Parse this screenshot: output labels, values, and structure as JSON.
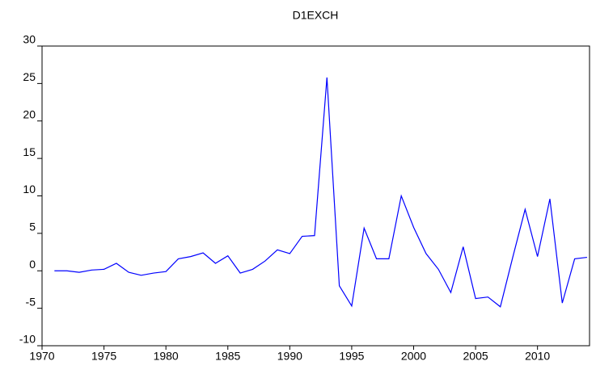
{
  "chart_data": {
    "type": "line",
    "title": "D1EXCH",
    "x": [
      1971,
      1972,
      1973,
      1974,
      1975,
      1976,
      1977,
      1978,
      1979,
      1980,
      1981,
      1982,
      1983,
      1984,
      1985,
      1986,
      1987,
      1988,
      1989,
      1990,
      1991,
      1992,
      1993,
      1994,
      1995,
      1996,
      1997,
      1998,
      1999,
      2000,
      2001,
      2002,
      2003,
      2004,
      2005,
      2006,
      2007,
      2008,
      2009,
      2010,
      2011,
      2012,
      2013,
      2014
    ],
    "series": [
      {
        "name": "D1EXCH",
        "color": "#0000ff",
        "values": [
          0,
          0,
          -0.2,
          0.1,
          0.2,
          1.0,
          -0.2,
          -0.6,
          -0.3,
          -0.1,
          1.6,
          1.9,
          2.4,
          1.0,
          2.0,
          -0.3,
          0.2,
          1.3,
          2.8,
          2.3,
          4.6,
          4.7,
          25.8,
          -2.0,
          -4.7,
          5.7,
          1.6,
          1.6,
          10.0,
          5.8,
          2.3,
          0.2,
          -2.9,
          3.2,
          -3.7,
          -3.5,
          -4.8,
          1.8,
          8.2,
          1.9,
          9.6,
          -4.3,
          1.6,
          1.8
        ]
      }
    ],
    "xlim": [
      1970,
      2014.2
    ],
    "xticks": [
      1970,
      1975,
      1980,
      1985,
      1990,
      1995,
      2000,
      2005,
      2010
    ],
    "ylim": [
      -10,
      30
    ],
    "yticks": [
      -10,
      -5,
      0,
      5,
      10,
      15,
      20,
      25,
      30
    ],
    "grid": false
  }
}
